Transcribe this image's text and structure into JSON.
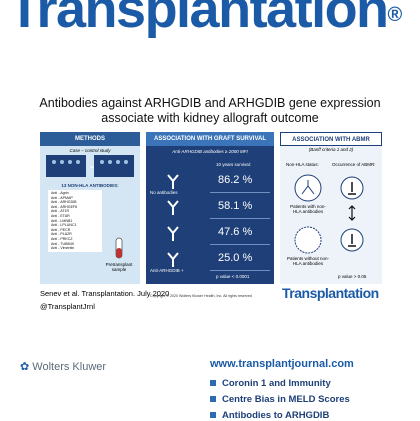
{
  "masthead": "Transplantation",
  "masthead_mark": "®",
  "headline": {
    "line1": "Antibodies against ARHGDIB and ARHGDIB gene expression",
    "line2": "associate with kidney allograft outcome"
  },
  "methods": {
    "header": "METHODS",
    "study": "Case – control study",
    "antibodies_header": "13 NON-HLA ANTIBODIES:",
    "antibodies": [
      "Anti - Agrin",
      "Anti - APMAP",
      "Anti - ARHGDIB",
      "Anti - ARHGEF6",
      "Anti - AT1R",
      "Anti - ETAR",
      "Anti - LMNB1",
      "Anti - LPLUNC1",
      "Anti - PECR",
      "Anti - PLA2R",
      "Anti - PRKCZ",
      "Anti - TUBB49",
      "Anti - Vimentin"
    ],
    "sample": "Pretransplant sample"
  },
  "survival": {
    "header": "ASSOCIATION WITH GRAFT SURVIVAL",
    "subheader": "Anti-ARHGDIB antibodies ≥ 2000 MFI",
    "caption": "10 years survival:",
    "rows": [
      {
        "label": "No antibodies",
        "value": "86.2 %"
      },
      {
        "label": "",
        "value": "58.1 %"
      },
      {
        "label": "",
        "value": "47.6 %"
      },
      {
        "label": "Anti-ARHGDIB +",
        "value": "25.0 %"
      }
    ],
    "p_value": "p value < 0.0001"
  },
  "abmr": {
    "header": "ASSOCIATION WITH ABMR",
    "criteria": "(Banff criteria 1 and 2)",
    "status": "Non-HLA status:",
    "occurrence": "Occurrence of ABMR:",
    "with": "Patients with non-HLA antibodies",
    "without": "Patients without non-HLA antibodies",
    "p_value": "p value > 0.05"
  },
  "citation": "Senev et al. Transplantation. July 2020",
  "handle": "@TransplantJrnl",
  "copyright": "Copyright © 2020 Wolters Kluwer Health, Inc. All rights reserved",
  "logo": "Transplantation",
  "publisher": "Wolters Kluwer",
  "url": "www.transplantjournal.com",
  "cover_lines": [
    "Coronin 1 and Immunity",
    "Centre Bias in MELD Scores",
    "Antibodies to ARHGDIB"
  ]
}
